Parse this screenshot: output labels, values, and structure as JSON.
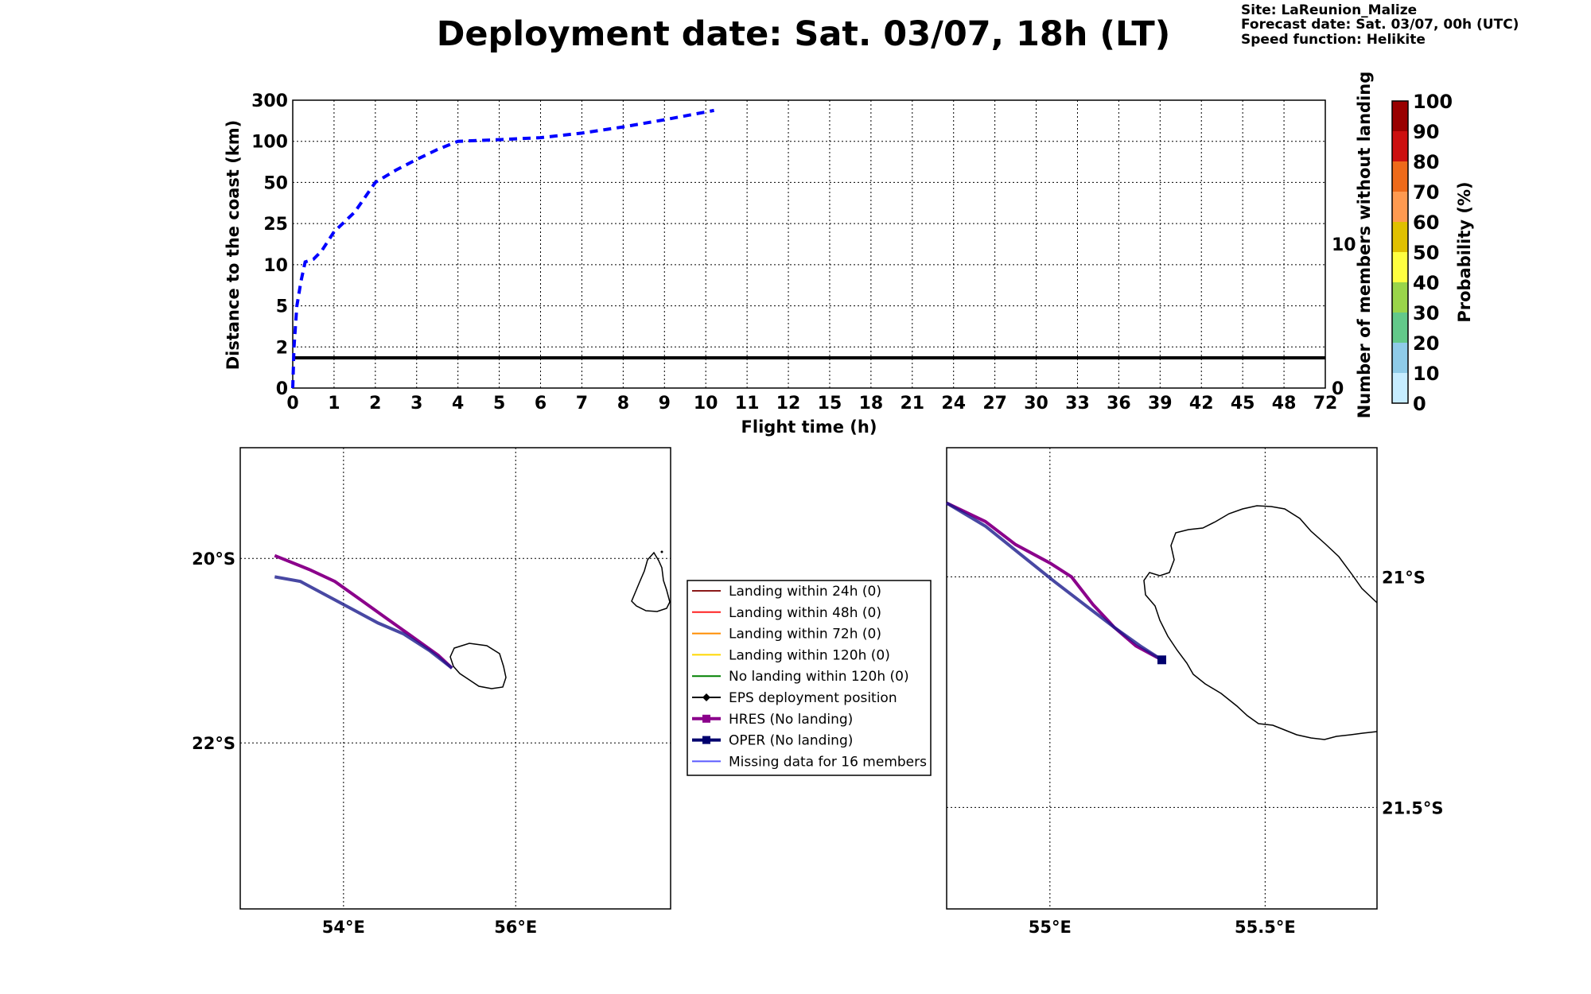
{
  "header": {
    "title": "Deployment date: Sat. 03/07, 18h (LT)",
    "info": [
      "Site: LaReunion_Malize",
      "Forecast date: Sat. 03/07, 00h (UTC)",
      "Speed function: Helikite"
    ]
  },
  "colors": {
    "eps_distance": "#0000ff",
    "hres": "#8b008b",
    "oper": "#1a1a8c",
    "missing": "#5a5aff"
  },
  "chart_data": [
    {
      "type": "line",
      "xlabel": "Flight time (h)",
      "ylabel": "Distance to the coast (km)",
      "ylabel_right": "Number of members without landing",
      "x_ticks": [
        "0",
        "1",
        "2",
        "3",
        "4",
        "5",
        "6",
        "7",
        "8",
        "9",
        "10",
        "11",
        "12",
        "15",
        "18",
        "21",
        "24",
        "27",
        "30",
        "33",
        "36",
        "39",
        "42",
        "45",
        "48",
        "72"
      ],
      "y_ticks": [
        "0",
        "2",
        "5",
        "10",
        "25",
        "50",
        "100",
        "300"
      ],
      "y_right_ticks": [
        "0",
        "10"
      ],
      "grid": true,
      "series": [
        {
          "style": "dashed",
          "x": [
            0,
            0.03,
            0.1,
            0.2,
            0.3,
            0.5,
            0.7,
            1.0,
            1.5,
            2.0,
            2.5,
            3.0,
            3.5,
            4.0,
            5.0,
            6.0,
            7.0,
            8.0,
            9.0,
            10.2
          ],
          "y": [
            0,
            2,
            5,
            8,
            11,
            12,
            15,
            22,
            32,
            50,
            65,
            78,
            90,
            100,
            108,
            118,
            140,
            170,
            205,
            250
          ]
        }
      ],
      "members_without_landing": {
        "value": 2.1,
        "ylim": [
          0,
          20
        ]
      },
      "colorbar": {
        "label": "Probability (%)",
        "ticks": [
          "0",
          "10",
          "20",
          "30",
          "40",
          "50",
          "60",
          "70",
          "80",
          "90",
          "100"
        ],
        "colors": [
          "#c6ecff",
          "#8fcbe8",
          "#63c98a",
          "#9ad54a",
          "#ffff40",
          "#e0c000",
          "#ff9a50",
          "#ee6a1a",
          "#cc1010",
          "#990000"
        ]
      }
    },
    {
      "type": "map",
      "x_ticks": [
        "54°E",
        "56°E"
      ],
      "y_ticks": [
        "20°S",
        "22°S"
      ],
      "xlim": [
        52.8,
        57.8
      ],
      "ylim": [
        -23.8,
        -18.8
      ],
      "tracks": [
        {
          "name": "HRES",
          "points": [
            [
              53.2,
              -19.97
            ],
            [
              53.6,
              -20.12
            ],
            [
              53.9,
              -20.25
            ],
            [
              54.2,
              -20.45
            ],
            [
              54.5,
              -20.65
            ],
            [
              54.8,
              -20.85
            ],
            [
              55.1,
              -21.05
            ],
            [
              55.26,
              -21.19
            ]
          ]
        },
        {
          "name": "OPER",
          "points": [
            [
              53.2,
              -20.2
            ],
            [
              53.5,
              -20.25
            ],
            [
              53.8,
              -20.4
            ],
            [
              54.1,
              -20.55
            ],
            [
              54.4,
              -20.7
            ],
            [
              54.7,
              -20.82
            ],
            [
              55.0,
              -21.0
            ],
            [
              55.26,
              -21.19
            ]
          ]
        }
      ]
    },
    {
      "type": "map",
      "x_ticks": [
        "55°E",
        "55.5°E"
      ],
      "y_ticks": [
        "21°S",
        "21.5°S"
      ],
      "xlim": [
        54.76,
        55.76
      ],
      "ylim": [
        -21.72,
        -20.72
      ],
      "tracks": [
        {
          "name": "HRES",
          "points": [
            [
              54.76,
              -20.84
            ],
            [
              54.85,
              -20.88
            ],
            [
              54.92,
              -20.93
            ],
            [
              55.0,
              -20.97
            ],
            [
              55.05,
              -21.0
            ],
            [
              55.1,
              -21.06
            ],
            [
              55.15,
              -21.11
            ],
            [
              55.2,
              -21.15
            ],
            [
              55.26,
              -21.18
            ]
          ]
        },
        {
          "name": "OPER",
          "points": [
            [
              54.76,
              -20.84
            ],
            [
              54.85,
              -20.89
            ],
            [
              54.93,
              -20.95
            ],
            [
              55.01,
              -21.01
            ],
            [
              55.08,
              -21.06
            ],
            [
              55.15,
              -21.11
            ],
            [
              55.21,
              -21.15
            ],
            [
              55.26,
              -21.18
            ]
          ]
        }
      ],
      "oper_end": [
        55.26,
        -21.18
      ]
    }
  ],
  "legend": {
    "items": [
      {
        "label": "Landing within 24h (0)",
        "color": "#8b1a1a",
        "marker": "none"
      },
      {
        "label": "Landing within 48h (0)",
        "color": "#ff2020",
        "marker": "none"
      },
      {
        "label": "Landing within 72h (0)",
        "color": "#ff8c00",
        "marker": "none"
      },
      {
        "label": "Landing within 120h (0)",
        "color": "#ffd700",
        "marker": "none"
      },
      {
        "label": "No landing within 120h (0)",
        "color": "#008000",
        "marker": "none"
      },
      {
        "label": "EPS deployment position",
        "color": "#000000",
        "marker": "diamond"
      },
      {
        "label": "HRES (No landing)",
        "color": "#8b008b",
        "marker": "square"
      },
      {
        "label": "OPER (No landing)",
        "color": "#00006e",
        "marker": "square"
      },
      {
        "label": "Missing data for 16 members",
        "color": "#5a5aff",
        "marker": "none"
      }
    ]
  }
}
